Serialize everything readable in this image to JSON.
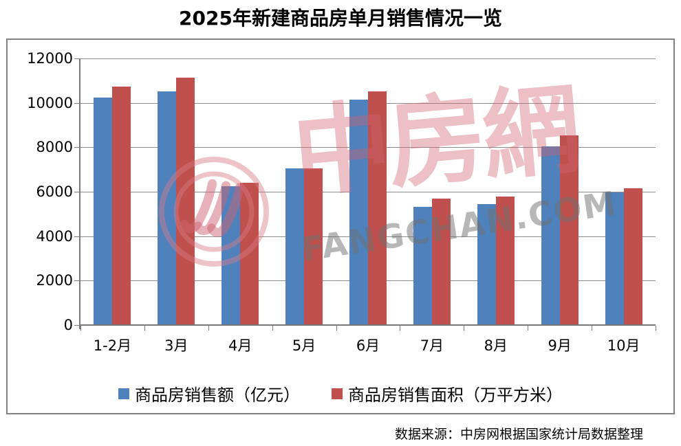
{
  "title": "2025年新建商品房单月销售情况一览",
  "source_note": "数据来源：中房网根据国家统计局数据整理",
  "watermark": {
    "cn": "中房網",
    "en": "FANGCHAN.COM",
    "logo_icon": "zhongfangwang-circle-logo"
  },
  "colors": {
    "series_amount": "#4F81BD",
    "series_area": "#C0504D",
    "gridline": "#8a8a8a",
    "frame_border": "#808080",
    "watermark_pink": "rgba(208,98,110,0.40)",
    "watermark_gray": "rgba(112,112,112,0.50)"
  },
  "chart_data": {
    "type": "bar",
    "title": "2025年新建商品房单月销售情况一览",
    "categories": [
      "1-2月",
      "3月",
      "4月",
      "5月",
      "6月",
      "7月",
      "8月",
      "9月",
      "10月"
    ],
    "series": [
      {
        "name": "商品房销售额（亿元）",
        "color": "#4F81BD",
        "values": [
          10250,
          10530,
          6250,
          7060,
          10150,
          5330,
          5450,
          8030,
          5980
        ]
      },
      {
        "name": "商品房销售面积（万平方米）",
        "color": "#C0504D",
        "values": [
          10740,
          11120,
          6390,
          7050,
          10530,
          5680,
          5780,
          8540,
          6160
        ]
      }
    ],
    "xlabel": "",
    "ylabel": "",
    "ylim": [
      0,
      12000
    ],
    "ytick_interval": 2000,
    "yticks": [
      "0",
      "2000",
      "4000",
      "6000",
      "8000",
      "10000",
      "12000"
    ],
    "grid": true,
    "legend_position": "bottom"
  }
}
